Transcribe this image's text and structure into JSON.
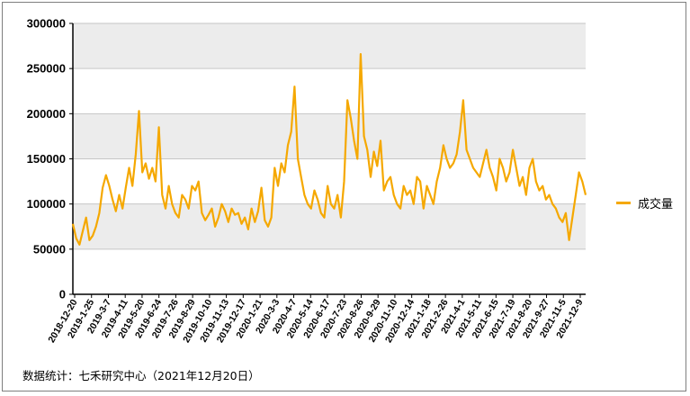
{
  "chart_data": {
    "type": "line",
    "title": "",
    "xlabel": "",
    "ylabel": "",
    "ylim": [
      0,
      300000
    ],
    "yticks": [
      "0",
      "50000",
      "100000",
      "150000",
      "200000",
      "250000",
      "300000"
    ],
    "xtick_labels": [
      "2018-12-20",
      "2019-1-25",
      "2019-3-7",
      "2019-4-11",
      "2019-5-20",
      "2019-6-24",
      "2019-7-26",
      "2019-8-29",
      "2019-10-10",
      "2019-11-13",
      "2019-12-17",
      "2020-1-21",
      "2020-3-3",
      "2020-4-7",
      "2020-5-14",
      "2020-6-17",
      "2020-7-23",
      "2020-8-26",
      "2020-9-29",
      "2020-11-10",
      "2020-12-14",
      "2021-1-18",
      "2021-2-26",
      "2021-4-1",
      "2021-5-11",
      "2021-6-15",
      "2021-7-19",
      "2021-8-20",
      "2021-9-27",
      "2021-11-5",
      "2021-12-9"
    ],
    "grid": true,
    "legend_position": "right",
    "series": [
      {
        "name": "成交量",
        "color": "#f5a800",
        "values": [
          78000,
          62000,
          55000,
          70000,
          85000,
          60000,
          65000,
          75000,
          90000,
          118000,
          132000,
          120000,
          105000,
          92000,
          110000,
          95000,
          118000,
          140000,
          120000,
          155000,
          203000,
          135000,
          145000,
          128000,
          140000,
          125000,
          185000,
          110000,
          95000,
          120000,
          100000,
          90000,
          85000,
          110000,
          105000,
          95000,
          120000,
          115000,
          125000,
          90000,
          82000,
          88000,
          95000,
          75000,
          85000,
          100000,
          92000,
          80000,
          95000,
          88000,
          90000,
          78000,
          85000,
          72000,
          95000,
          80000,
          92000,
          118000,
          82000,
          75000,
          85000,
          140000,
          120000,
          145000,
          135000,
          165000,
          180000,
          230000,
          150000,
          130000,
          110000,
          100000,
          95000,
          115000,
          105000,
          90000,
          85000,
          120000,
          100000,
          95000,
          110000,
          85000,
          125000,
          215000,
          195000,
          170000,
          150000,
          266000,
          175000,
          160000,
          130000,
          158000,
          142000,
          170000,
          115000,
          125000,
          130000,
          110000,
          100000,
          95000,
          120000,
          110000,
          115000,
          100000,
          130000,
          125000,
          95000,
          120000,
          110000,
          100000,
          125000,
          140000,
          165000,
          150000,
          140000,
          145000,
          155000,
          180000,
          215000,
          160000,
          150000,
          140000,
          135000,
          130000,
          145000,
          160000,
          140000,
          130000,
          115000,
          150000,
          140000,
          125000,
          135000,
          160000,
          140000,
          120000,
          130000,
          110000,
          140000,
          150000,
          125000,
          115000,
          120000,
          105000,
          110000,
          100000,
          95000,
          85000,
          80000,
          90000,
          60000,
          85000,
          110000,
          135000,
          125000,
          110000
        ]
      }
    ]
  },
  "legend": {
    "label": "成交量"
  },
  "source_text": "数据统计：七禾研究中心（2021年12月20日）"
}
